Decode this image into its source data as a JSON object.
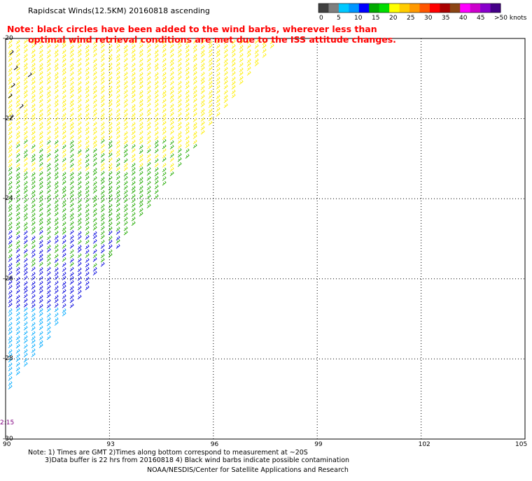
{
  "title": "Rapidscat Winds(12.5KM) 20160818 ascending",
  "note_red": {
    "line1": "Note: black circles have been added to the wind barbs, wherever less than",
    "line2": "optimal wind retrieval conditions are met due to the ISS attitude changes."
  },
  "legend": {
    "colors": [
      "#404040",
      "#7f7f7f",
      "#00c8ff",
      "#0096ff",
      "#0000ff",
      "#00aa00",
      "#00dd00",
      "#ffff00",
      "#ffcc00",
      "#ff9900",
      "#ff5500",
      "#ff0000",
      "#aa0000",
      "#8b4513",
      "#ff00ff",
      "#cc00cc",
      "#8800cc",
      "#440088"
    ],
    "labels": [
      "0",
      "5",
      "10",
      "15",
      "20",
      "25",
      "30",
      "35",
      "40",
      "45",
      ">50 knots"
    ]
  },
  "axes": {
    "lon_labels": [
      "90",
      "93",
      "96",
      "99",
      "102",
      "105"
    ],
    "lat_labels": [
      "-20",
      "-22",
      "-24",
      "-26",
      "-28",
      "-30"
    ]
  },
  "time_label": "2:15",
  "footer": {
    "note1": "Note: 1) Times are GMT 2)Times along bottom correspond to measurement at ~20S",
    "note2": "3)Data buffer is 22 hrs from 20160818 4) Black wind barbs indicate possible contamination",
    "credit": "NOAA/NESDIS/Center for Satellite Applications and Research"
  }
}
